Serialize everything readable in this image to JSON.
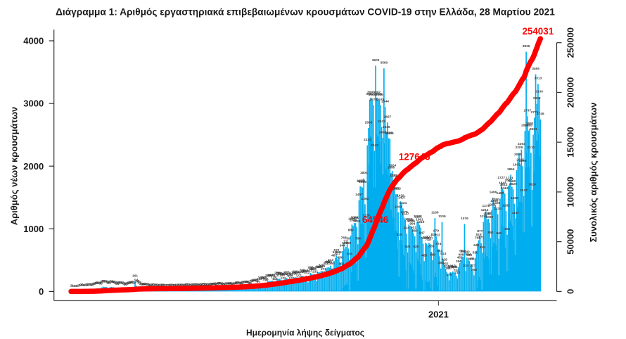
{
  "figure": {
    "title": "Διάγραμμα 1: Αριθμός εργαστηριακά επιβεβαιωμένων κρουσμάτων COVID-19 στην Ελλάδα, 28 Μαρτίου 2021"
  },
  "colors": {
    "bar": "#00aeef",
    "cumulative_line": "#fe0000",
    "annotation_text": "#fe0000",
    "axis_text": "#1a1a1a",
    "bar_label_text": "#3d3d3d",
    "axis_line": "#2e2e2e",
    "x_axis_line": "#555555",
    "background": "#ffffff"
  },
  "chart_data": {
    "type": "bar",
    "title": "Διάγραμμα 1: Αριθμός εργαστηριακά επιβεβαιωμένων κρουσμάτων COVID-19 στην Ελλάδα, 28 Μαρτίου 2021",
    "xlabel": "Ημερομηνία λήψης δείγματος",
    "ylabel": "Αριθμός νέων κρουσμάτων",
    "y2label": "Συνολικός αριθμός κρουσμάτων",
    "yaxis": {
      "min": 0,
      "max": 4000,
      "ticks": [
        0,
        1000,
        2000,
        3000,
        4000
      ]
    },
    "y2axis": {
      "min": 0,
      "max": 250000,
      "ticks": [
        0,
        50000,
        100000,
        150000,
        200000,
        250000
      ]
    },
    "x_ticks": [
      {
        "label": "2021",
        "date": "2021-01-01"
      }
    ],
    "grid": false,
    "legend": null,
    "frequency": "daily",
    "start_date": "2020-02-26",
    "end_date": "2021-03-28",
    "dates": [
      "2020-02-26",
      "2020-02-27",
      "2020-02-28",
      "2020-02-29",
      "2020-03-01",
      "2020-03-02",
      "2020-03-03",
      "2020-03-04",
      "2020-03-05",
      "2020-03-06",
      "2020-03-07",
      "2020-03-08",
      "2020-03-09",
      "2020-03-10",
      "2020-03-11",
      "2020-03-12",
      "2020-03-13",
      "2020-03-14",
      "2020-03-15",
      "2020-03-16",
      "2020-03-17",
      "2020-03-18",
      "2020-03-19",
      "2020-03-20",
      "2020-03-21",
      "2020-03-22",
      "2020-03-23",
      "2020-03-24",
      "2020-03-25",
      "2020-03-26",
      "2020-03-27",
      "2020-03-28",
      "2020-03-29",
      "2020-03-30",
      "2020-03-31",
      "2020-04-01",
      "2020-04-02",
      "2020-04-03",
      "2020-04-04",
      "2020-04-05",
      "2020-04-06",
      "2020-04-07",
      "2020-04-08",
      "2020-04-09",
      "2020-04-10",
      "2020-04-11",
      "2020-04-12",
      "2020-04-13",
      "2020-04-14",
      "2020-04-15",
      "2020-04-16",
      "2020-04-17",
      "2020-04-18",
      "2020-04-19",
      "2020-04-20",
      "2020-04-21",
      "2020-04-22",
      "2020-04-23",
      "2020-04-24",
      "2020-04-25",
      "2020-04-26",
      "2020-04-27",
      "2020-04-28",
      "2020-04-29",
      "2020-04-30",
      "2020-05-01",
      "2020-05-02",
      "2020-05-03",
      "2020-05-04",
      "2020-05-05",
      "2020-05-06",
      "2020-05-07",
      "2020-05-08",
      "2020-05-09",
      "2020-05-10",
      "2020-05-11",
      "2020-05-12",
      "2020-05-13",
      "2020-05-14",
      "2020-05-15",
      "2020-05-16",
      "2020-05-17",
      "2020-05-18",
      "2020-05-19",
      "2020-05-20",
      "2020-05-21",
      "2020-05-22",
      "2020-05-23",
      "2020-05-24",
      "2020-05-25",
      "2020-05-26",
      "2020-05-27",
      "2020-05-28",
      "2020-05-29",
      "2020-05-30",
      "2020-05-31",
      "2020-06-01",
      "2020-06-02",
      "2020-06-03",
      "2020-06-04",
      "2020-06-05",
      "2020-06-06",
      "2020-06-07",
      "2020-06-08",
      "2020-06-09",
      "2020-06-10",
      "2020-06-11",
      "2020-06-12",
      "2020-06-13",
      "2020-06-14",
      "2020-06-15",
      "2020-06-16",
      "2020-06-17",
      "2020-06-18",
      "2020-06-19",
      "2020-06-20",
      "2020-06-21",
      "2020-06-22",
      "2020-06-23",
      "2020-06-24",
      "2020-06-25",
      "2020-06-26",
      "2020-06-27",
      "2020-06-28",
      "2020-06-29",
      "2020-06-30",
      "2020-07-01",
      "2020-07-02",
      "2020-07-03",
      "2020-07-04",
      "2020-07-05",
      "2020-07-06",
      "2020-07-07",
      "2020-07-08",
      "2020-07-09",
      "2020-07-10",
      "2020-07-11",
      "2020-07-12",
      "2020-07-13",
      "2020-07-14",
      "2020-07-15",
      "2020-07-16",
      "2020-07-17",
      "2020-07-18",
      "2020-07-19",
      "2020-07-20",
      "2020-07-21",
      "2020-07-22",
      "2020-07-23",
      "2020-07-24",
      "2020-07-25",
      "2020-07-26",
      "2020-07-27",
      "2020-07-28",
      "2020-07-29",
      "2020-07-30",
      "2020-07-31",
      "2020-08-01",
      "2020-08-02",
      "2020-08-03",
      "2020-08-04",
      "2020-08-05",
      "2020-08-06",
      "2020-08-07",
      "2020-08-08",
      "2020-08-09",
      "2020-08-10",
      "2020-08-11",
      "2020-08-12",
      "2020-08-13",
      "2020-08-14",
      "2020-08-15",
      "2020-08-16",
      "2020-08-17",
      "2020-08-18",
      "2020-08-19",
      "2020-08-20",
      "2020-08-21",
      "2020-08-22",
      "2020-08-23",
      "2020-08-24",
      "2020-08-25",
      "2020-08-26",
      "2020-08-27",
      "2020-08-28",
      "2020-08-29",
      "2020-08-30",
      "2020-08-31",
      "2020-09-01",
      "2020-09-02",
      "2020-09-03",
      "2020-09-04",
      "2020-09-05",
      "2020-09-06",
      "2020-09-07",
      "2020-09-08",
      "2020-09-09",
      "2020-09-10",
      "2020-09-11",
      "2020-09-12",
      "2020-09-13",
      "2020-09-14",
      "2020-09-15",
      "2020-09-16",
      "2020-09-17",
      "2020-09-18",
      "2020-09-19",
      "2020-09-20",
      "2020-09-21",
      "2020-09-22",
      "2020-09-23",
      "2020-09-24",
      "2020-09-25",
      "2020-09-26",
      "2020-09-27",
      "2020-09-28",
      "2020-09-29",
      "2020-09-30",
      "2020-10-01",
      "2020-10-02",
      "2020-10-03",
      "2020-10-04",
      "2020-10-05",
      "2020-10-06",
      "2020-10-07",
      "2020-10-08",
      "2020-10-09",
      "2020-10-10",
      "2020-10-11",
      "2020-10-12",
      "2020-10-13",
      "2020-10-14",
      "2020-10-15",
      "2020-10-16",
      "2020-10-17",
      "2020-10-18",
      "2020-10-19",
      "2020-10-20",
      "2020-10-21",
      "2020-10-22",
      "2020-10-23",
      "2020-10-24",
      "2020-10-25",
      "2020-10-26",
      "2020-10-27",
      "2020-10-28",
      "2020-10-29",
      "2020-10-30",
      "2020-10-31",
      "2020-11-01",
      "2020-11-02",
      "2020-11-03",
      "2020-11-04",
      "2020-11-05",
      "2020-11-06",
      "2020-11-07",
      "2020-11-08",
      "2020-11-09",
      "2020-11-10",
      "2020-11-11",
      "2020-11-12",
      "2020-11-13",
      "2020-11-14",
      "2020-11-15",
      "2020-11-16",
      "2020-11-17",
      "2020-11-18",
      "2020-11-19",
      "2020-11-20",
      "2020-11-21",
      "2020-11-22",
      "2020-11-23",
      "2020-11-24",
      "2020-11-25",
      "2020-11-26",
      "2020-11-27",
      "2020-11-28",
      "2020-11-29",
      "2020-11-30",
      "2020-12-01",
      "2020-12-02",
      "2020-12-03",
      "2020-12-04",
      "2020-12-05",
      "2020-12-06",
      "2020-12-07",
      "2020-12-08",
      "2020-12-09",
      "2020-12-10",
      "2020-12-11",
      "2020-12-12",
      "2020-12-13",
      "2020-12-14",
      "2020-12-15",
      "2020-12-16",
      "2020-12-17",
      "2020-12-18",
      "2020-12-19",
      "2020-12-20",
      "2020-12-21",
      "2020-12-22",
      "2020-12-23",
      "2020-12-24",
      "2020-12-25",
      "2020-12-26",
      "2020-12-27",
      "2020-12-28",
      "2020-12-29",
      "2020-12-30",
      "2020-12-31",
      "2021-01-01",
      "2021-01-02",
      "2021-01-03",
      "2021-01-04",
      "2021-01-05",
      "2021-01-06",
      "2021-01-07",
      "2021-01-08",
      "2021-01-09",
      "2021-01-10",
      "2021-01-11",
      "2021-01-12",
      "2021-01-13",
      "2021-01-14",
      "2021-01-15",
      "2021-01-16",
      "2021-01-17",
      "2021-01-18",
      "2021-01-19",
      "2021-01-20",
      "2021-01-21",
      "2021-01-22",
      "2021-01-23",
      "2021-01-24",
      "2021-01-25",
      "2021-01-26",
      "2021-01-27",
      "2021-01-28",
      "2021-01-29",
      "2021-01-30",
      "2021-01-31",
      "2021-02-01",
      "2021-02-02",
      "2021-02-03",
      "2021-02-04",
      "2021-02-05",
      "2021-02-06",
      "2021-02-07",
      "2021-02-08",
      "2021-02-09",
      "2021-02-10",
      "2021-02-11",
      "2021-02-12",
      "2021-02-13",
      "2021-02-14",
      "2021-02-15",
      "2021-02-16",
      "2021-02-17",
      "2021-02-18",
      "2021-02-19",
      "2021-02-20",
      "2021-02-21",
      "2021-02-22",
      "2021-02-23",
      "2021-02-24",
      "2021-02-25",
      "2021-02-26",
      "2021-02-27",
      "2021-02-28",
      "2021-03-01",
      "2021-03-02",
      "2021-03-03",
      "2021-03-04",
      "2021-03-05",
      "2021-03-06",
      "2021-03-07",
      "2021-03-08",
      "2021-03-09",
      "2021-03-10",
      "2021-03-11",
      "2021-03-12",
      "2021-03-13",
      "2021-03-14",
      "2021-03-15",
      "2021-03-16",
      "2021-03-17",
      "2021-03-18",
      "2021-03-19",
      "2021-03-20",
      "2021-03-21",
      "2021-03-22",
      "2021-03-23",
      "2021-03-24",
      "2021-03-25",
      "2021-03-26",
      "2021-03-27",
      "2021-03-28"
    ],
    "values": [
      2,
      2,
      0,
      0,
      0,
      0,
      2,
      7,
      10,
      21,
      10,
      8,
      16,
      18,
      20,
      23,
      22,
      21,
      17,
      30,
      37,
      43,
      50,
      52,
      45,
      38,
      65,
      76,
      71,
      73,
      71,
      57,
      45,
      67,
      73,
      68,
      67,
      57,
      45,
      34,
      50,
      54,
      52,
      47,
      43,
      33,
      24,
      38,
      42,
      51,
      56,
      62,
      61,
      52,
      161,
      93,
      78,
      62,
      50,
      34,
      22,
      34,
      31,
      27,
      27,
      21,
      17,
      12,
      18,
      20,
      17,
      16,
      15,
      12,
      8,
      14,
      14,
      13,
      12,
      12,
      10,
      7,
      11,
      12,
      13,
      14,
      12,
      11,
      8,
      14,
      16,
      17,
      15,
      16,
      14,
      10,
      18,
      20,
      20,
      19,
      18,
      16,
      12,
      20,
      22,
      22,
      21,
      19,
      17,
      14,
      24,
      25,
      25,
      23,
      26,
      21,
      15,
      26,
      29,
      30,
      30,
      40,
      33,
      26,
      43,
      41,
      39,
      38,
      34,
      27,
      22,
      37,
      38,
      38,
      42,
      40,
      33,
      27,
      43,
      46,
      53,
      51,
      48,
      45,
      36,
      61,
      61,
      69,
      64,
      67,
      54,
      46,
      76,
      83,
      91,
      92,
      93,
      85,
      67,
      113,
      131,
      125,
      132,
      135,
      105,
      92,
      160,
      165,
      167,
      168,
      171,
      139,
      111,
      170,
      206,
      204,
      202,
      189,
      165,
      122,
      191,
      207,
      215,
      196,
      173,
      164,
      120,
      198,
      211,
      229,
      224,
      202,
      172,
      139,
      225,
      249,
      240,
      230,
      232,
      212,
      144,
      243,
      295,
      282,
      269,
      276,
      231,
      166,
      302,
      309,
      303,
      329,
      315,
      271,
      217,
      355,
      381,
      388,
      377,
      413,
      360,
      263,
      487,
      536,
      572,
      517,
      536,
      456,
      350,
      644,
      767,
      682,
      711,
      759,
      685,
      508,
      889,
      1068,
      1048,
      1093,
      1090,
      1029,
      754,
      1457,
      1677,
      1669,
      1658,
      1804,
      1392,
      1128,
      2332,
      2608,
      3062,
      3092,
      3049,
      2975,
      2243,
      3603,
      3092,
      3062,
      3049,
      2975,
      2623,
      2450,
      3560,
      2944,
      2535,
      2697,
      2444,
      2435,
      1890,
      1924,
      1761,
      1758,
      1551,
      1553,
      1263,
      819,
      1439,
      1407,
      1324,
      1178,
      1147,
      924,
      625,
      1066,
      1048,
      1029,
      994,
      931,
      880,
      628,
      1112,
      1105,
      1061,
      1019,
      847,
      762,
      485,
      776,
      763,
      734,
      777,
      757,
      635,
      499,
      820,
      1169,
      879,
      812,
      674,
      561,
      368,
      1109,
      514,
      418,
      355,
      313,
      281,
      179,
      306,
      298,
      317,
      306,
      301,
      252,
      210,
      390,
      452,
      499,
      557,
      550,
      1076,
      324,
      542,
      504,
      490,
      433,
      433,
      327,
      259,
      530,
      649,
      766,
      818,
      877,
      771,
      615,
      1110,
      1212,
      1278,
      1148,
      1160,
      1099,
      852,
      1296,
      1496,
      1356,
      1380,
      1326,
      1234,
      841,
      1480,
      1727,
      1643,
      1613,
      1561,
      1282,
      906,
      1687,
      1721,
      1864,
      1669,
      1629,
      1400,
      1167,
      1933,
      2095,
      2209,
      2015,
      2264,
      1999,
      1527,
      2562,
      3825,
      2797,
      2565,
      2593,
      2210,
      1619,
      2501,
      2773,
      3465,
      2993,
      3313,
      3100,
      2746
    ],
    "bar_value_labels": true,
    "cumulative_line": {
      "name": "Συνολικός αριθμός κρουσμάτων",
      "derived": "cumulative sum of daily values",
      "final_total": 254031
    },
    "annotations": [
      {
        "text": "64546",
        "date": "2020-11-08",
        "cumulative": 64546,
        "dx": 1.2
      },
      {
        "text": "127646",
        "date": "2020-12-11",
        "cumulative": 127646,
        "dx": 1.2
      },
      {
        "text": "254031",
        "date": "2021-03-28",
        "cumulative": 254031,
        "dx": -3.5
      }
    ]
  }
}
